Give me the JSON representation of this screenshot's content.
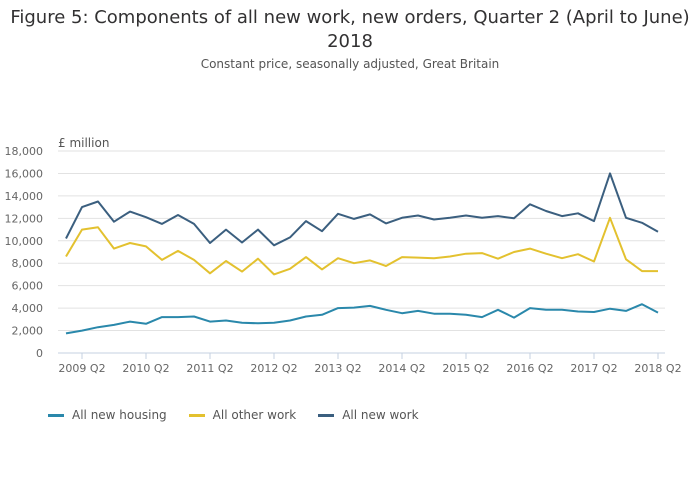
{
  "chart_data": {
    "type": "line",
    "title": "Figure 5: Components of all new work, new orders, Quarter 2 (April to June) 2018",
    "subtitle": "Constant price, seasonally adjusted, Great Britain",
    "ylabel": "£ million",
    "xlabel": "",
    "ylim": [
      0,
      18000
    ],
    "yticks": [
      0,
      2000,
      4000,
      6000,
      8000,
      10000,
      12000,
      14000,
      16000,
      18000
    ],
    "ytick_labels": [
      "0",
      "2,000",
      "4,000",
      "6,000",
      "8,000",
      "10,000",
      "12,000",
      "14,000",
      "16,000",
      "18,000"
    ],
    "grid": true,
    "legend_position": "bottom-left",
    "x": [
      "2009 Q1",
      "2009 Q2",
      "2009 Q3",
      "2009 Q4",
      "2010 Q1",
      "2010 Q2",
      "2010 Q3",
      "2010 Q4",
      "2011 Q1",
      "2011 Q2",
      "2011 Q3",
      "2011 Q4",
      "2012 Q1",
      "2012 Q2",
      "2012 Q3",
      "2012 Q4",
      "2013 Q1",
      "2013 Q2",
      "2013 Q3",
      "2013 Q4",
      "2014 Q1",
      "2014 Q2",
      "2014 Q3",
      "2014 Q4",
      "2015 Q1",
      "2015 Q2",
      "2015 Q3",
      "2015 Q4",
      "2016 Q1",
      "2016 Q2",
      "2016 Q3",
      "2016 Q4",
      "2017 Q1",
      "2017 Q2",
      "2017 Q3",
      "2017 Q4",
      "2018 Q1",
      "2018 Q2"
    ],
    "xtick_labels": [
      "2009 Q2",
      "2010 Q2",
      "2011 Q2",
      "2012 Q2",
      "2013 Q2",
      "2014 Q2",
      "2015 Q2",
      "2016 Q2",
      "2017 Q2",
      "2018 Q2"
    ],
    "series": [
      {
        "name": "All new housing",
        "color": "#2a88ab",
        "values": [
          1750,
          2000,
          2300,
          2500,
          2800,
          2600,
          3200,
          3200,
          3250,
          2800,
          2900,
          2700,
          2650,
          2700,
          2900,
          3250,
          3400,
          4000,
          4050,
          4200,
          3850,
          3550,
          3750,
          3500,
          3500,
          3400,
          3200,
          3850,
          3150,
          4000,
          3850,
          3850,
          3700,
          3650,
          3950,
          3750,
          4350,
          3600
        ]
      },
      {
        "name": "All other work",
        "color": "#e3c12f",
        "values": [
          8600,
          11000,
          11200,
          9300,
          9800,
          9500,
          8300,
          9100,
          8300,
          7100,
          8200,
          7250,
          8400,
          7000,
          7500,
          8550,
          7450,
          8450,
          8000,
          8250,
          7750,
          8550,
          8500,
          8450,
          8600,
          8850,
          8900,
          8400,
          9000,
          9300,
          8850,
          8450,
          8800,
          8150,
          12050,
          8350,
          7300,
          7300
        ]
      },
      {
        "name": "All new work",
        "color": "#3b5f7f",
        "values": [
          10200,
          13000,
          13500,
          11700,
          12600,
          12100,
          11500,
          12300,
          11500,
          9800,
          11000,
          9850,
          11000,
          9600,
          10300,
          11750,
          10850,
          12400,
          11950,
          12350,
          11550,
          12050,
          12250,
          11900,
          12050,
          12250,
          12050,
          12200,
          12000,
          13250,
          12650,
          12200,
          12450,
          11750,
          16000,
          12050,
          11600,
          10800
        ]
      }
    ]
  }
}
